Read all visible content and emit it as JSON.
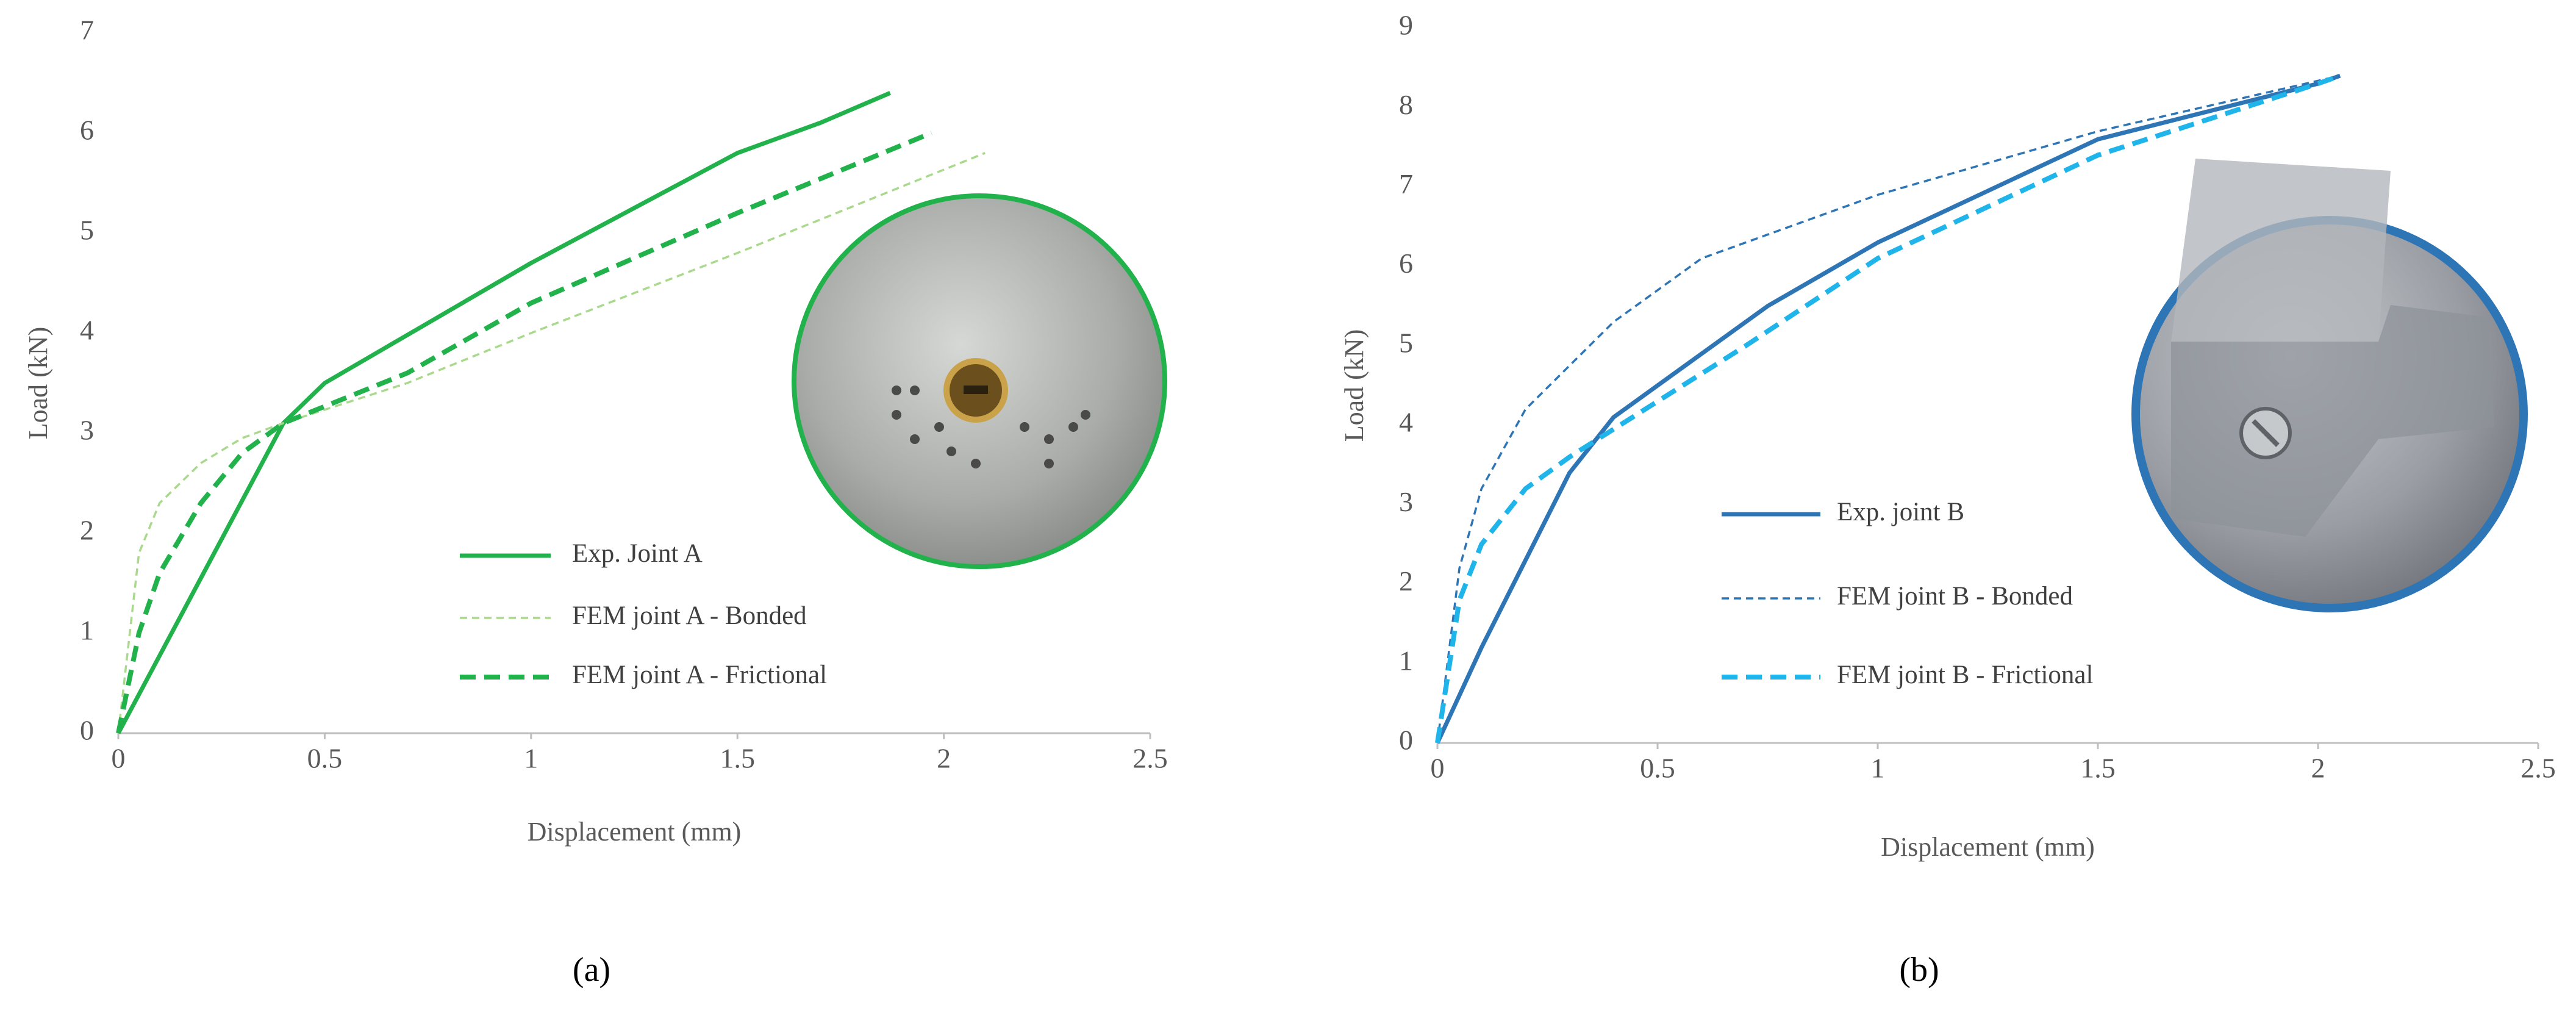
{
  "chart_data": [
    {
      "type": "line",
      "xlabel": "Displacement (mm)",
      "ylabel": "Load (kN)",
      "panel_label": "(a)",
      "xlim": [
        0,
        2.5
      ],
      "xticks": [
        0,
        0.5,
        1,
        1.5,
        2,
        2.5
      ],
      "ylim": [
        0,
        7
      ],
      "yticks": [
        0,
        1,
        2,
        3,
        4,
        5,
        6,
        7
      ],
      "grid": false,
      "series": [
        {
          "name": "Exp. Joint A",
          "color": "#22b24c",
          "style": "solid",
          "x": [
            0,
            0.2,
            0.4,
            0.5,
            0.75,
            1,
            1.25,
            1.5,
            1.7,
            1.87
          ],
          "values": [
            0,
            1.55,
            3.1,
            3.5,
            4.1,
            4.7,
            5.25,
            5.8,
            6.1,
            6.4
          ]
        },
        {
          "name": "FEM joint A - Bonded",
          "color": "#a9d98c",
          "style": "thin-dashed",
          "x": [
            0,
            0.05,
            0.1,
            0.2,
            0.3,
            0.4,
            0.7,
            1,
            1.5,
            2.1
          ],
          "values": [
            0,
            1.8,
            2.3,
            2.7,
            2.95,
            3.1,
            3.5,
            4.0,
            4.8,
            5.8
          ]
        },
        {
          "name": "FEM joint A - Frictional",
          "color": "#22b24c",
          "style": "dashed",
          "x": [
            0,
            0.05,
            0.1,
            0.2,
            0.3,
            0.4,
            0.7,
            1,
            1.5,
            1.97
          ],
          "values": [
            0,
            1.0,
            1.6,
            2.3,
            2.8,
            3.1,
            3.6,
            4.3,
            5.2,
            6.0
          ]
        }
      ]
    },
    {
      "type": "line",
      "xlabel": "Displacement (mm)",
      "ylabel": "Load (kN)",
      "panel_label": "(b)",
      "xlim": [
        0,
        2.5
      ],
      "xticks": [
        0,
        0.5,
        1,
        1.5,
        2,
        2.5
      ],
      "ylim": [
        0,
        9
      ],
      "yticks": [
        0,
        1,
        2,
        3,
        4,
        5,
        6,
        7,
        8,
        9
      ],
      "grid": false,
      "series": [
        {
          "name": "Exp. joint B",
          "color": "#2e75b6",
          "style": "solid",
          "x": [
            0,
            0.1,
            0.2,
            0.3,
            0.4,
            0.5,
            0.75,
            1,
            1.5,
            2,
            2.05
          ],
          "values": [
            0,
            1.2,
            2.3,
            3.4,
            4.1,
            4.5,
            5.5,
            6.3,
            7.6,
            8.3,
            8.4
          ]
        },
        {
          "name": "FEM joint B - Bonded",
          "color": "#2e75b6",
          "style": "thin-dashed",
          "x": [
            0,
            0.05,
            0.1,
            0.2,
            0.4,
            0.6,
            1,
            1.5,
            2.05
          ],
          "values": [
            0,
            2.2,
            3.2,
            4.2,
            5.3,
            6.1,
            6.9,
            7.7,
            8.4
          ]
        },
        {
          "name": "FEM joint B - Frictional",
          "color": "#1fb5ea",
          "style": "dashed",
          "x": [
            0,
            0.05,
            0.1,
            0.2,
            0.3,
            0.5,
            0.7,
            1,
            1.5,
            2,
            2.05
          ],
          "values": [
            0,
            1.8,
            2.5,
            3.2,
            3.6,
            4.3,
            5.0,
            6.1,
            7.4,
            8.3,
            8.4
          ]
        }
      ]
    }
  ]
}
